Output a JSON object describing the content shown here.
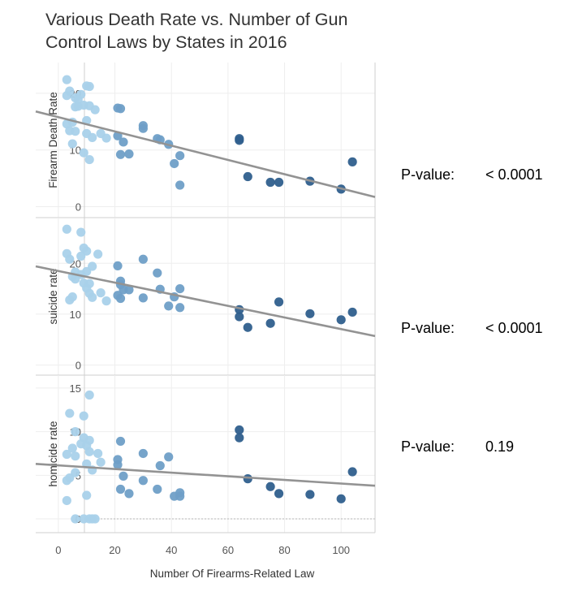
{
  "title": "Various Death Rate vs. Number of Gun Control Laws by States in 2016",
  "xlabel": "Number Of Firearms-Related Law",
  "pvalue_label": "P-value:",
  "colors": {
    "light": "#a9d1ea",
    "mid": "#6f9fc7",
    "dark": "#2f5f8d",
    "trend": "#939393",
    "axis_text": "#555555",
    "grid": "#eeeeee",
    "frame": "#cfcfcf"
  },
  "chart_data": [
    {
      "type": "scatter",
      "ylabel": "Firearm Death Rate",
      "xlim": [
        -8,
        112
      ],
      "ylim": [
        -1.5,
        25
      ],
      "y_ticks": [
        0,
        10,
        20
      ],
      "x_ticks": [
        0,
        20,
        40,
        60,
        80,
        100
      ],
      "pvalue": "< 0.0001",
      "trend": {
        "x": [
          -8,
          112
        ],
        "y": [
          16.8,
          1.7
        ]
      },
      "points": [
        {
          "x": 3,
          "y": 22.4
        },
        {
          "x": 3,
          "y": 19.6
        },
        {
          "x": 4,
          "y": 20.4
        },
        {
          "x": 6,
          "y": 19.2
        },
        {
          "x": 7,
          "y": 18.9
        },
        {
          "x": 8,
          "y": 19.8
        },
        {
          "x": 10,
          "y": 21.3
        },
        {
          "x": 11,
          "y": 21.2
        },
        {
          "x": 6,
          "y": 17.6
        },
        {
          "x": 7,
          "y": 17.7
        },
        {
          "x": 9,
          "y": 17.9
        },
        {
          "x": 11,
          "y": 17.8
        },
        {
          "x": 13,
          "y": 17.1
        },
        {
          "x": 10,
          "y": 15.2
        },
        {
          "x": 3,
          "y": 14.6
        },
        {
          "x": 5,
          "y": 14.9
        },
        {
          "x": 4,
          "y": 13.4
        },
        {
          "x": 6,
          "y": 13.3
        },
        {
          "x": 10,
          "y": 12.9
        },
        {
          "x": 12,
          "y": 12.2
        },
        {
          "x": 15,
          "y": 12.9
        },
        {
          "x": 17,
          "y": 12.1
        },
        {
          "x": 5,
          "y": 11.1
        },
        {
          "x": 9,
          "y": 9.5
        },
        {
          "x": 11,
          "y": 8.3
        },
        {
          "x": 21,
          "y": 17.4
        },
        {
          "x": 22,
          "y": 17.3
        },
        {
          "x": 21,
          "y": 12.5
        },
        {
          "x": 23,
          "y": 11.4
        },
        {
          "x": 22,
          "y": 9.2
        },
        {
          "x": 25,
          "y": 9.3
        },
        {
          "x": 30,
          "y": 14.3
        },
        {
          "x": 30,
          "y": 13.8
        },
        {
          "x": 35,
          "y": 12.0
        },
        {
          "x": 36,
          "y": 11.8
        },
        {
          "x": 39,
          "y": 11.0
        },
        {
          "x": 41,
          "y": 7.6
        },
        {
          "x": 43,
          "y": 9.0
        },
        {
          "x": 43,
          "y": 3.8
        },
        {
          "x": 64,
          "y": 12.0
        },
        {
          "x": 64,
          "y": 11.7
        },
        {
          "x": 67,
          "y": 5.3
        },
        {
          "x": 75,
          "y": 4.3
        },
        {
          "x": 78,
          "y": 4.3
        },
        {
          "x": 89,
          "y": 4.5
        },
        {
          "x": 100,
          "y": 3.1
        },
        {
          "x": 104,
          "y": 7.9
        }
      ]
    },
    {
      "type": "scatter",
      "ylabel": "suicide rate",
      "xlim": [
        -8,
        112
      ],
      "ylim": [
        -1.5,
        28.5
      ],
      "y_ticks": [
        0,
        10,
        20
      ],
      "x_ticks": [
        0,
        20,
        40,
        60,
        80,
        100
      ],
      "pvalue": "< 0.0001",
      "trend": {
        "x": [
          -8,
          112
        ],
        "y": [
          19.4,
          5.7
        ]
      },
      "points": [
        {
          "x": 3,
          "y": 26.7
        },
        {
          "x": 8,
          "y": 26.1
        },
        {
          "x": 9,
          "y": 23.0
        },
        {
          "x": 10,
          "y": 22.4
        },
        {
          "x": 3,
          "y": 21.9
        },
        {
          "x": 8,
          "y": 21.4
        },
        {
          "x": 14,
          "y": 21.8
        },
        {
          "x": 4,
          "y": 20.8
        },
        {
          "x": 12,
          "y": 19.4
        },
        {
          "x": 6,
          "y": 18.3
        },
        {
          "x": 10,
          "y": 18.4
        },
        {
          "x": 5,
          "y": 17.4
        },
        {
          "x": 6,
          "y": 16.9
        },
        {
          "x": 8,
          "y": 17.8
        },
        {
          "x": 9,
          "y": 16.1
        },
        {
          "x": 11,
          "y": 16.0
        },
        {
          "x": 10,
          "y": 15.1
        },
        {
          "x": 11,
          "y": 14.1
        },
        {
          "x": 12,
          "y": 13.3
        },
        {
          "x": 15,
          "y": 14.2
        },
        {
          "x": 17,
          "y": 12.6
        },
        {
          "x": 4,
          "y": 12.8
        },
        {
          "x": 5,
          "y": 13.4
        },
        {
          "x": 21,
          "y": 19.5
        },
        {
          "x": 22,
          "y": 16.5
        },
        {
          "x": 22,
          "y": 15.8
        },
        {
          "x": 23,
          "y": 14.8
        },
        {
          "x": 25,
          "y": 14.8
        },
        {
          "x": 21,
          "y": 13.7
        },
        {
          "x": 22,
          "y": 13.1
        },
        {
          "x": 30,
          "y": 20.8
        },
        {
          "x": 30,
          "y": 13.2
        },
        {
          "x": 35,
          "y": 18.1
        },
        {
          "x": 36,
          "y": 14.9
        },
        {
          "x": 39,
          "y": 11.6
        },
        {
          "x": 41,
          "y": 13.4
        },
        {
          "x": 43,
          "y": 15.0
        },
        {
          "x": 43,
          "y": 11.3
        },
        {
          "x": 64,
          "y": 10.9
        },
        {
          "x": 64,
          "y": 9.5
        },
        {
          "x": 67,
          "y": 7.4
        },
        {
          "x": 75,
          "y": 8.2
        },
        {
          "x": 78,
          "y": 12.4
        },
        {
          "x": 89,
          "y": 10.1
        },
        {
          "x": 100,
          "y": 8.9
        },
        {
          "x": 104,
          "y": 10.4
        }
      ]
    },
    {
      "type": "scatter",
      "ylabel": "homicide rate",
      "xlim": [
        -8,
        112
      ],
      "ylim": [
        -1.3,
        16.2
      ],
      "y_ticks": [
        0,
        5,
        10,
        15
      ],
      "x_ticks": [
        0,
        20,
        40,
        60,
        80,
        100
      ],
      "pvalue": "0.19",
      "trend": {
        "x": [
          -8,
          112
        ],
        "y": [
          6.3,
          3.8
        ]
      },
      "points": [
        {
          "x": 11,
          "y": 14.2
        },
        {
          "x": 4,
          "y": 12.1
        },
        {
          "x": 9,
          "y": 11.8
        },
        {
          "x": 6,
          "y": 10.0
        },
        {
          "x": 9,
          "y": 9.3
        },
        {
          "x": 11,
          "y": 9.0
        },
        {
          "x": 8,
          "y": 8.6
        },
        {
          "x": 10,
          "y": 8.4
        },
        {
          "x": 5,
          "y": 8.1
        },
        {
          "x": 11,
          "y": 7.7
        },
        {
          "x": 3,
          "y": 7.4
        },
        {
          "x": 6,
          "y": 7.2
        },
        {
          "x": 14,
          "y": 7.5
        },
        {
          "x": 10,
          "y": 6.3
        },
        {
          "x": 15,
          "y": 6.5
        },
        {
          "x": 12,
          "y": 5.6
        },
        {
          "x": 6,
          "y": 5.3
        },
        {
          "x": 4,
          "y": 4.7
        },
        {
          "x": 3,
          "y": 4.4
        },
        {
          "x": 10,
          "y": 2.7
        },
        {
          "x": 3,
          "y": 2.1
        },
        {
          "x": 6,
          "y": 0.0
        },
        {
          "x": 9,
          "y": 0.0
        },
        {
          "x": 11,
          "y": 0.0
        },
        {
          "x": 12,
          "y": 0.0
        },
        {
          "x": 13,
          "y": 0.0
        },
        {
          "x": 22,
          "y": 8.9
        },
        {
          "x": 21,
          "y": 6.8
        },
        {
          "x": 21,
          "y": 6.2
        },
        {
          "x": 23,
          "y": 4.9
        },
        {
          "x": 22,
          "y": 3.4
        },
        {
          "x": 25,
          "y": 2.9
        },
        {
          "x": 30,
          "y": 7.5
        },
        {
          "x": 30,
          "y": 4.4
        },
        {
          "x": 35,
          "y": 3.4
        },
        {
          "x": 36,
          "y": 6.1
        },
        {
          "x": 39,
          "y": 7.1
        },
        {
          "x": 41,
          "y": 2.6
        },
        {
          "x": 43,
          "y": 3.0
        },
        {
          "x": 43,
          "y": 2.6
        },
        {
          "x": 64,
          "y": 10.2
        },
        {
          "x": 64,
          "y": 9.3
        },
        {
          "x": 67,
          "y": 4.6
        },
        {
          "x": 75,
          "y": 3.7
        },
        {
          "x": 78,
          "y": 2.9
        },
        {
          "x": 89,
          "y": 2.8
        },
        {
          "x": 100,
          "y": 2.3
        },
        {
          "x": 104,
          "y": 5.4
        }
      ]
    }
  ]
}
